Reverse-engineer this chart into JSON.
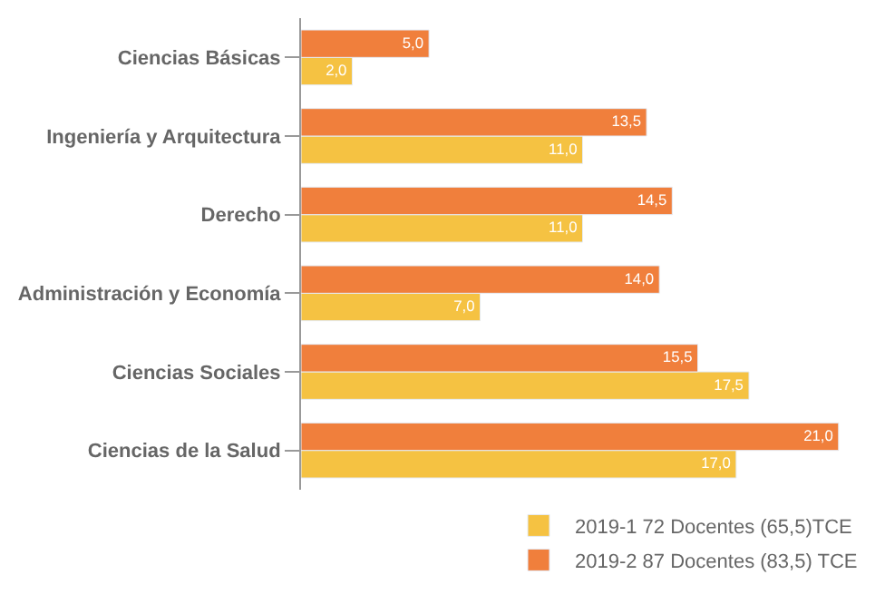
{
  "chart_data": {
    "type": "bar",
    "orientation": "horizontal",
    "categories": [
      "Ciencias Básicas",
      "Ingeniería y Arquitectura",
      "Derecho",
      "Administración y Economía",
      "Ciencias Sociales",
      "Ciencias de la Salud"
    ],
    "series": [
      {
        "name": "2019-1 72 Docentes (65,5)TCE",
        "color": "#f5c242",
        "values": [
          2.0,
          11.0,
          11.0,
          7.0,
          17.5,
          17.0
        ],
        "value_labels": [
          "2,0",
          "11,0",
          "11,0",
          "7,0",
          "17,5",
          "17,0"
        ]
      },
      {
        "name": "2019-2 87 Docentes (83,5) TCE",
        "color": "#f07f3c",
        "values": [
          5.0,
          13.5,
          14.5,
          14.0,
          15.5,
          21.0
        ],
        "value_labels": [
          "5,0",
          "13,5",
          "14,5",
          "14,0",
          "15,5",
          "21,0"
        ]
      }
    ],
    "legend": "bottom right"
  }
}
